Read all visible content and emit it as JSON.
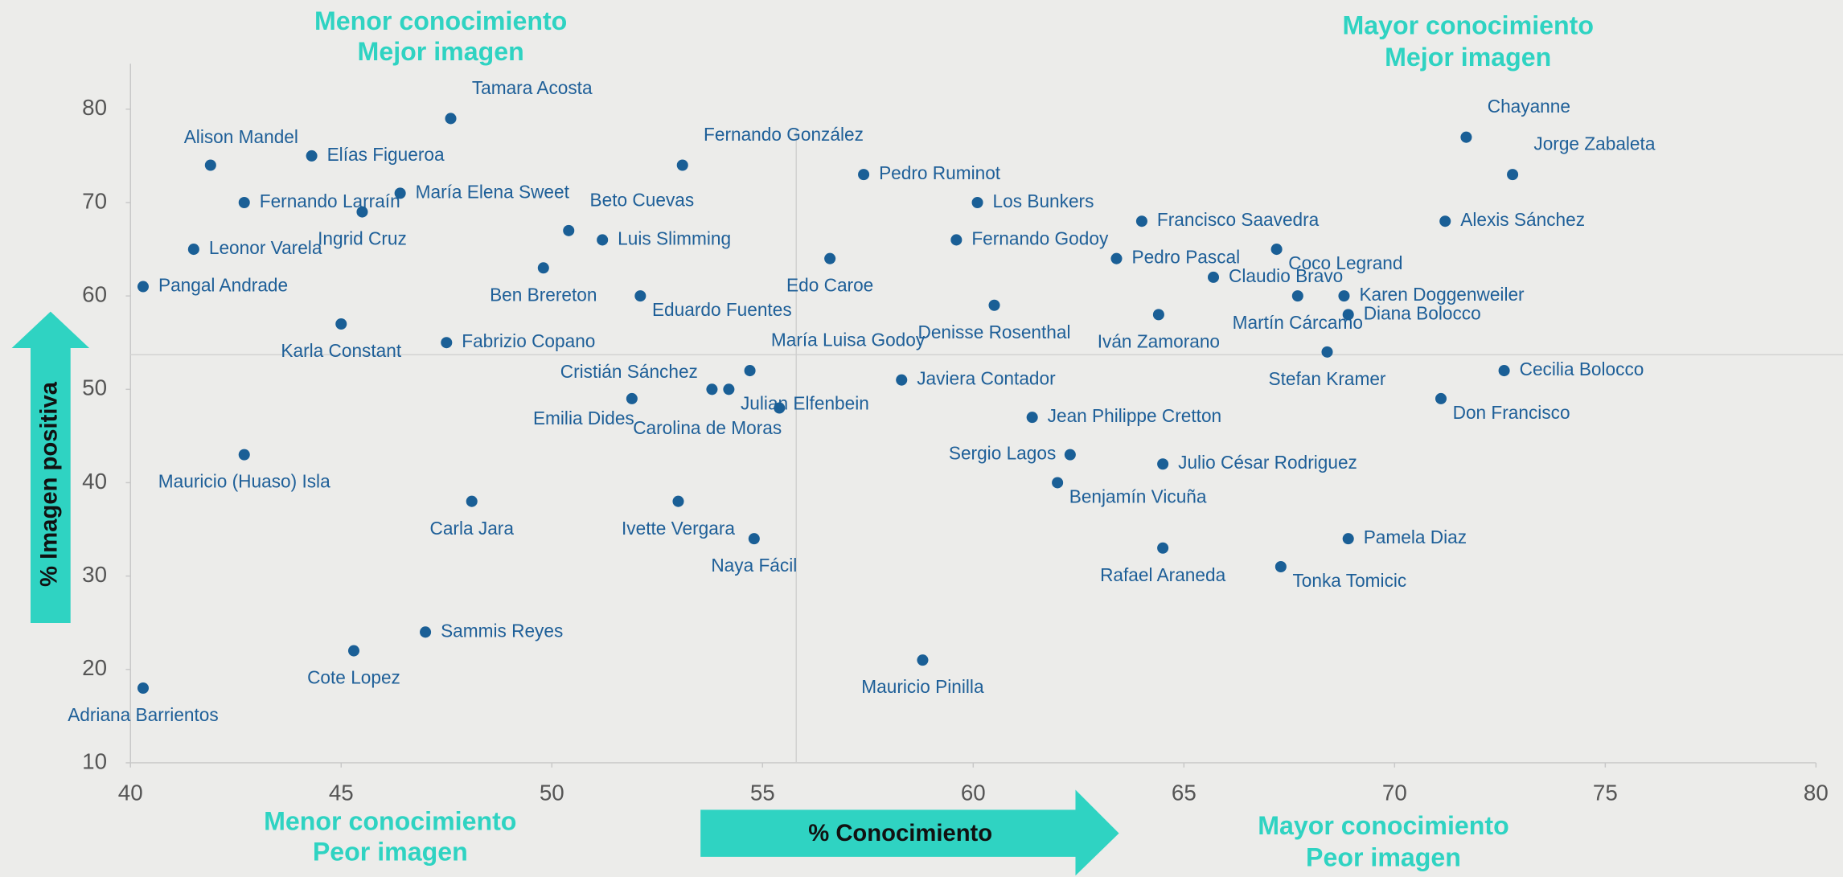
{
  "chart_data": {
    "type": "scatter",
    "x_label": "% Conocimiento",
    "y_label": "% Imagen positiva",
    "quadrants": {
      "top_left": [
        "Menor conocimiento",
        "Mejor imagen"
      ],
      "top_right": [
        "Mayor conocimiento",
        "Mejor imagen"
      ],
      "bottom_left": [
        "Menor conocimiento",
        "Peor imagen"
      ],
      "bottom_right": [
        "Mayor conocimiento",
        "Peor imagen"
      ]
    },
    "color": "#1a5f96",
    "xlim": [
      40,
      80
    ],
    "ylim": [
      10,
      85
    ],
    "xticks": [
      40,
      45,
      50,
      55,
      60,
      65,
      70,
      75,
      80
    ],
    "yticks": [
      10,
      20,
      30,
      40,
      50,
      60,
      70,
      80
    ],
    "reference_lines": {
      "x": 55.8,
      "y": 53.7
    },
    "points": [
      {
        "label": "Tamara Acosta",
        "x": 47.6,
        "y": 79
      },
      {
        "label": "Alison Mandel",
        "x": 41.9,
        "y": 74
      },
      {
        "label": "Elías Figueroa",
        "x": 44.3,
        "y": 75
      },
      {
        "label": "Fernando Larraín",
        "x": 42.7,
        "y": 70
      },
      {
        "label": "María Elena Sweet",
        "x": 46.4,
        "y": 71
      },
      {
        "label": "Ingrid Cruz",
        "x": 45.5,
        "y": 69
      },
      {
        "label": "Leonor Varela",
        "x": 41.5,
        "y": 65
      },
      {
        "label": "Pangal Andrade",
        "x": 40.3,
        "y": 61
      },
      {
        "label": "Karla Constant",
        "x": 45,
        "y": 57
      },
      {
        "label": "Fabrizio Copano",
        "x": 47.5,
        "y": 55
      },
      {
        "label": "Ben Brereton",
        "x": 49.8,
        "y": 63
      },
      {
        "label": "Beto Cuevas",
        "x": 50.4,
        "y": 67
      },
      {
        "label": "Luis Slimming",
        "x": 51.2,
        "y": 66
      },
      {
        "label": "Eduardo Fuentes",
        "x": 52.1,
        "y": 60
      },
      {
        "label": "Fernando González",
        "x": 53.1,
        "y": 74
      },
      {
        "label": "Pedro Ruminot",
        "x": 57.4,
        "y": 73
      },
      {
        "label": "Edo Caroe",
        "x": 56.6,
        "y": 64
      },
      {
        "label": "Los Bunkers",
        "x": 60.1,
        "y": 70
      },
      {
        "label": "Fernando Godoy",
        "x": 59.6,
        "y": 66
      },
      {
        "label": "Denisse Rosenthal",
        "x": 60.5,
        "y": 59
      },
      {
        "label": "Francisco Saavedra",
        "x": 64,
        "y": 68
      },
      {
        "label": "Pedro Pascal",
        "x": 63.4,
        "y": 64
      },
      {
        "label": "Iván Zamorano",
        "x": 64.4,
        "y": 58
      },
      {
        "label": "Claudio Bravo",
        "x": 65.7,
        "y": 62
      },
      {
        "label": "Coco Legrand",
        "x": 67.2,
        "y": 65
      },
      {
        "label": "Martín Cárcamo",
        "x": 67.7,
        "y": 60
      },
      {
        "label": "Karen Doggenweiler",
        "x": 68.8,
        "y": 60
      },
      {
        "label": "Diana Bolocco",
        "x": 68.9,
        "y": 58
      },
      {
        "label": "Stefan Kramer",
        "x": 68.4,
        "y": 54
      },
      {
        "label": "Chayanne",
        "x": 71.7,
        "y": 77
      },
      {
        "label": "Jorge Zabaleta",
        "x": 72.8,
        "y": 73
      },
      {
        "label": "Alexis Sánchez",
        "x": 71.2,
        "y": 68
      },
      {
        "label": "Cecilia Bolocco",
        "x": 72.6,
        "y": 52
      },
      {
        "label": "Don Francisco",
        "x": 71.1,
        "y": 49
      },
      {
        "label": "María Luisa Godoy",
        "x": 54.7,
        "y": 52
      },
      {
        "label": "Cristián Sánchez",
        "x": 53.8,
        "y": 50
      },
      {
        "label": "Julian Elfenbein",
        "x": 54.2,
        "y": 50
      },
      {
        "label": "Carolina de Moras",
        "x": 55.4,
        "y": 48
      },
      {
        "label": "Emilia Dides",
        "x": 51.9,
        "y": 49
      },
      {
        "label": "Javiera Contador",
        "x": 58.3,
        "y": 51
      },
      {
        "label": "Jean Philippe Cretton",
        "x": 61.4,
        "y": 47
      },
      {
        "label": "Sergio Lagos",
        "x": 62.3,
        "y": 43
      },
      {
        "label": "Julio César Rodriguez",
        "x": 64.5,
        "y": 42
      },
      {
        "label": "Benjamín Vicuña",
        "x": 62,
        "y": 40
      },
      {
        "label": "Rafael Araneda",
        "x": 64.5,
        "y": 33
      },
      {
        "label": "Pamela Diaz",
        "x": 68.9,
        "y": 34
      },
      {
        "label": "Tonka Tomicic",
        "x": 67.3,
        "y": 31
      },
      {
        "label": "Mauricio Pinilla",
        "x": 58.8,
        "y": 21
      },
      {
        "label": "Mauricio (Huaso) Isla",
        "x": 42.7,
        "y": 43
      },
      {
        "label": "Carla Jara",
        "x": 48.1,
        "y": 38
      },
      {
        "label": "Ivette Vergara",
        "x": 53,
        "y": 38
      },
      {
        "label": "Naya Fácil",
        "x": 54.8,
        "y": 34
      },
      {
        "label": "Sammis Reyes",
        "x": 47,
        "y": 24
      },
      {
        "label": "Cote Lopez",
        "x": 45.3,
        "y": 22
      },
      {
        "label": "Adriana Barrientos",
        "x": 40.3,
        "y": 18
      }
    ]
  }
}
